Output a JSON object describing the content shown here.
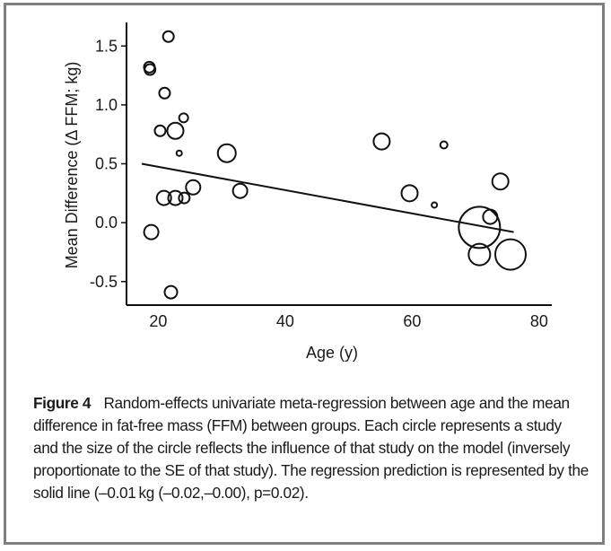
{
  "chart_data": {
    "type": "scatter",
    "title": "",
    "xlabel": "Age (y)",
    "ylabel": "Mean Difference (Δ FFM; kg)",
    "xlim": [
      15,
      82
    ],
    "ylim": [
      -0.7,
      1.7
    ],
    "xticks": [
      20,
      40,
      60,
      80
    ],
    "xtick_labels": [
      "20",
      "40",
      "60",
      "80"
    ],
    "yticks": [
      -0.5,
      0.0,
      0.5,
      1.0,
      1.5
    ],
    "ytick_labels": [
      "-0.5",
      "0.0",
      "0.5",
      "1.0",
      "1.5"
    ],
    "grid": false,
    "legend": "none",
    "marker": "open-circle",
    "size_meaning": "influence of study on the model (inversely proportional to SE)",
    "points": [
      {
        "x": 21.6,
        "y": 1.58,
        "weight": 6
      },
      {
        "x": 18.6,
        "y": 1.32,
        "weight": 6
      },
      {
        "x": 18.7,
        "y": 1.3,
        "weight": 6
      },
      {
        "x": 21.0,
        "y": 1.1,
        "weight": 6
      },
      {
        "x": 24.0,
        "y": 0.89,
        "weight": 5
      },
      {
        "x": 20.3,
        "y": 0.78,
        "weight": 6
      },
      {
        "x": 22.7,
        "y": 0.78,
        "weight": 9
      },
      {
        "x": 23.3,
        "y": 0.59,
        "weight": 3
      },
      {
        "x": 30.8,
        "y": 0.59,
        "weight": 10
      },
      {
        "x": 55.2,
        "y": 0.69,
        "weight": 9
      },
      {
        "x": 65.0,
        "y": 0.66,
        "weight": 4
      },
      {
        "x": 25.5,
        "y": 0.3,
        "weight": 8
      },
      {
        "x": 20.9,
        "y": 0.21,
        "weight": 8
      },
      {
        "x": 22.7,
        "y": 0.21,
        "weight": 8
      },
      {
        "x": 24.1,
        "y": 0.21,
        "weight": 6
      },
      {
        "x": 32.9,
        "y": 0.27,
        "weight": 8
      },
      {
        "x": 59.6,
        "y": 0.25,
        "weight": 9
      },
      {
        "x": 63.5,
        "y": 0.15,
        "weight": 3
      },
      {
        "x": 73.9,
        "y": 0.35,
        "weight": 9
      },
      {
        "x": 72.3,
        "y": 0.05,
        "weight": 8
      },
      {
        "x": 70.6,
        "y": -0.04,
        "weight": 23
      },
      {
        "x": 70.6,
        "y": -0.27,
        "weight": 12
      },
      {
        "x": 75.5,
        "y": -0.27,
        "weight": 17
      },
      {
        "x": 18.9,
        "y": -0.08,
        "weight": 8
      },
      {
        "x": 22.0,
        "y": -0.59,
        "weight": 7
      }
    ],
    "regression_line": {
      "x": [
        17.4,
        76.0
      ],
      "y": [
        0.5,
        -0.08
      ]
    }
  },
  "caption": {
    "label": "Figure 4",
    "text": "Random-effects univariate meta-regression between age and the mean difference in fat-free mass (FFM) between groups. Each circle represents a study and the size of the circle reflects the influence of that study on the model (inversely proportionate to the SE of that study). The regression prediction is represented by the solid line (–0.01 kg (–0.02,–0.00), p=0.02)."
  }
}
